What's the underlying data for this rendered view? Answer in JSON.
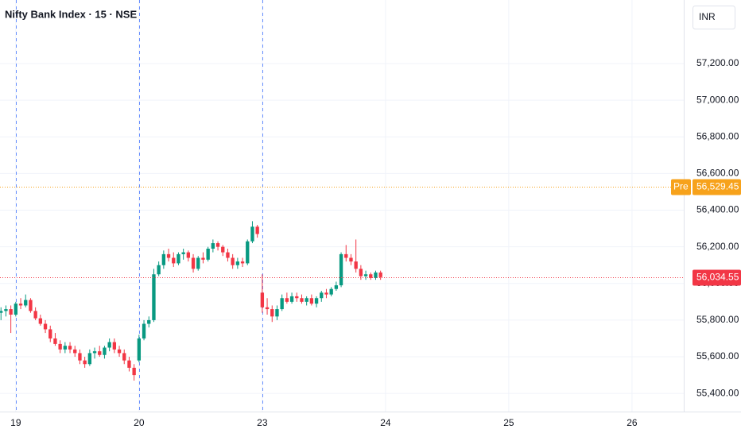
{
  "chart_data": {
    "type": "candlestick",
    "title": "Nifty Bank Index · 15 · NSE",
    "currency": "INR",
    "up_color": "#089981",
    "down_color": "#f23645",
    "grid": true,
    "xlim": [
      -0.2,
      138.5
    ],
    "xticks": [
      {
        "value": 3,
        "label": "19"
      },
      {
        "value": 28,
        "label": "20"
      },
      {
        "value": 53,
        "label": "23"
      },
      {
        "value": 78,
        "label": "24"
      },
      {
        "value": 103,
        "label": "25"
      },
      {
        "value": 128,
        "label": "26"
      }
    ],
    "session_lines": [
      3,
      28,
      53
    ],
    "ylim": [
      55301,
      57547
    ],
    "yticks": [
      {
        "value": 55400,
        "label": "55,400.00"
      },
      {
        "value": 55600,
        "label": "55,600.00"
      },
      {
        "value": 55800,
        "label": "55,800.00"
      },
      {
        "value": 56000,
        "label": "56,000.00"
      },
      {
        "value": 56200,
        "label": "56,200.00"
      },
      {
        "value": 56400,
        "label": "56,400.00"
      },
      {
        "value": 56600,
        "label": "56,600.00"
      },
      {
        "value": 56800,
        "label": "56,800.00"
      },
      {
        "value": 57000,
        "label": "57,000.00"
      },
      {
        "value": 57200,
        "label": "57,200.00"
      }
    ],
    "open": [
      55840,
      55850,
      55860,
      55830,
      55890,
      55880,
      55910,
      55850,
      55810,
      55780,
      55750,
      55700,
      55670,
      55640,
      55660,
      55640,
      55620,
      55580,
      55560,
      55620,
      55630,
      55610,
      55650,
      55680,
      55640,
      55620,
      55580,
      55540,
      55580,
      55700,
      55780,
      55800,
      56050,
      56100,
      56160,
      56140,
      56110,
      56160,
      56170,
      56140,
      56080,
      56140,
      56130,
      56190,
      56220,
      56200,
      56170,
      56140,
      56100,
      56120,
      56110,
      56230,
      56310,
      55950,
      55870,
      55860,
      55820,
      55860,
      55920,
      55900,
      55930,
      55920,
      55900,
      55920,
      55890,
      55920,
      55950,
      55940,
      55970,
      55990,
      56160,
      56140,
      56120,
      56080,
      56040,
      56050,
      56030,
      56060
    ],
    "high": [
      55870,
      55880,
      55880,
      55900,
      55920,
      55940,
      55920,
      55870,
      55830,
      55800,
      55770,
      55730,
      55690,
      55680,
      55680,
      55660,
      55640,
      55600,
      55640,
      55650,
      55660,
      55660,
      55700,
      55700,
      55660,
      55640,
      55600,
      55560,
      55720,
      55800,
      55820,
      56080,
      56120,
      56180,
      56190,
      56170,
      56170,
      56190,
      56180,
      56160,
      56150,
      56170,
      56200,
      56240,
      56230,
      56210,
      56190,
      56160,
      56140,
      56140,
      56240,
      56340,
      56320,
      56050,
      55920,
      55880,
      55880,
      55940,
      55950,
      55950,
      55950,
      55940,
      55930,
      55940,
      55930,
      55960,
      55970,
      55980,
      56010,
      56170,
      56210,
      56160,
      56240,
      56100,
      56070,
      56060,
      56070,
      56070
    ],
    "low": [
      55800,
      55820,
      55730,
      55820,
      55860,
      55870,
      55840,
      55800,
      55770,
      55730,
      55680,
      55660,
      55620,
      55620,
      55620,
      55600,
      55560,
      55540,
      55550,
      55590,
      55600,
      55590,
      55630,
      55620,
      55600,
      55560,
      55520,
      55470,
      55570,
      55690,
      55760,
      55790,
      56040,
      56080,
      56120,
      56090,
      56100,
      56130,
      56120,
      56060,
      56070,
      56110,
      56120,
      56170,
      56180,
      56150,
      56120,
      56080,
      56080,
      56090,
      56100,
      56220,
      56250,
      55840,
      55830,
      55790,
      55800,
      55850,
      55890,
      55890,
      55900,
      55890,
      55880,
      55880,
      55870,
      55900,
      55920,
      55930,
      55960,
      55980,
      56120,
      56100,
      56060,
      56020,
      56020,
      56020,
      56020,
      56020
    ],
    "close": [
      55850,
      55860,
      55830,
      55890,
      55880,
      55910,
      55850,
      55810,
      55780,
      55750,
      55700,
      55670,
      55640,
      55660,
      55640,
      55620,
      55580,
      55560,
      55620,
      55630,
      55610,
      55650,
      55680,
      55640,
      55620,
      55580,
      55540,
      55500,
      55700,
      55780,
      55800,
      56050,
      56100,
      56160,
      56140,
      56110,
      56160,
      56170,
      56140,
      56080,
      56140,
      56130,
      56190,
      56220,
      56200,
      56170,
      56140,
      56100,
      56120,
      56110,
      56230,
      56310,
      56270,
      55870,
      55860,
      55820,
      55860,
      55920,
      55900,
      55930,
      55920,
      55900,
      55920,
      55890,
      55920,
      55950,
      55940,
      55970,
      55990,
      56160,
      56140,
      56120,
      56080,
      56040,
      56050,
      56030,
      56060,
      56034.55
    ],
    "price_lines": [
      {
        "label": "Pre",
        "value": 56529.45,
        "value_label": "56,529.45",
        "color": "#f7a21b"
      },
      {
        "value": 56034.55,
        "value_label": "56,034.55",
        "color": "#f23645"
      }
    ]
  }
}
